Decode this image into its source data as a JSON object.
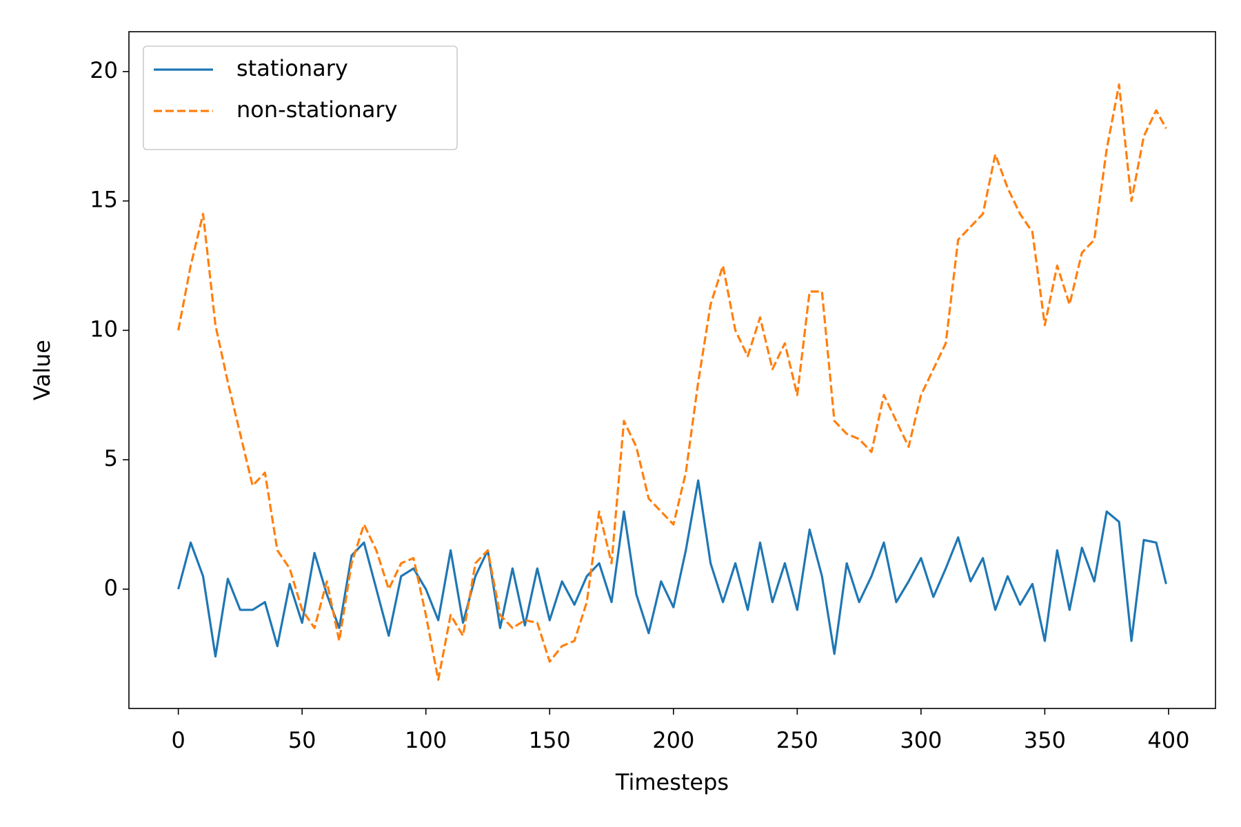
{
  "chart_data": {
    "type": "line",
    "xlabel": "Timesteps",
    "ylabel": "Value",
    "x": [
      0,
      5,
      10,
      15,
      20,
      25,
      30,
      35,
      40,
      45,
      50,
      55,
      60,
      65,
      70,
      75,
      80,
      85,
      90,
      95,
      100,
      105,
      110,
      115,
      120,
      125,
      130,
      135,
      140,
      145,
      150,
      155,
      160,
      165,
      170,
      175,
      180,
      185,
      190,
      195,
      200,
      205,
      210,
      215,
      220,
      225,
      230,
      235,
      240,
      245,
      250,
      255,
      260,
      265,
      270,
      275,
      280,
      285,
      290,
      295,
      300,
      305,
      310,
      315,
      320,
      325,
      330,
      335,
      340,
      345,
      350,
      355,
      360,
      365,
      370,
      375,
      380,
      385,
      390,
      395,
      399
    ],
    "series": [
      {
        "name": "stationary",
        "color": "#1f77b4",
        "linestyle": "solid",
        "values": [
          0,
          1.8,
          0.5,
          -2.6,
          0.4,
          -0.8,
          -0.8,
          -0.5,
          -2.2,
          0.2,
          -1.3,
          1.4,
          -0.2,
          -1.5,
          1.3,
          1.8,
          0,
          -1.8,
          0.5,
          0.8,
          0,
          -1.2,
          1.5,
          -1.3,
          0.5,
          1.5,
          -1.5,
          0.8,
          -1.4,
          0.8,
          -1.2,
          0.3,
          -0.6,
          0.5,
          1.0,
          -0.5,
          3.0,
          -0.2,
          -1.7,
          0.3,
          -0.7,
          1.5,
          4.2,
          1.0,
          -0.5,
          1.0,
          -0.8,
          1.8,
          -0.5,
          1.0,
          -0.8,
          2.3,
          0.5,
          -2.5,
          1.0,
          -0.5,
          0.5,
          1.8,
          -0.5,
          0.3,
          1.2,
          -0.3,
          0.8,
          2.0,
          0.3,
          1.2,
          -0.8,
          0.5,
          -0.6,
          0.2,
          -2.0,
          1.5,
          -0.8,
          1.6,
          0.3,
          3.0,
          2.6,
          -2.0,
          1.9,
          1.8,
          0.2
        ]
      },
      {
        "name": "non-stationary",
        "color": "#ff7f0e",
        "linestyle": "dashed",
        "values": [
          10.0,
          12.5,
          14.5,
          10.2,
          8.0,
          6.0,
          4.0,
          4.5,
          1.5,
          0.8,
          -0.8,
          -1.5,
          0.3,
          -2.0,
          1.0,
          2.5,
          1.5,
          0.0,
          1.0,
          1.2,
          -1.0,
          -3.5,
          -1.0,
          -1.8,
          1.0,
          1.5,
          -1.0,
          -1.5,
          -1.2,
          -1.3,
          -2.8,
          -2.2,
          -2.0,
          -0.5,
          3.0,
          1.0,
          6.5,
          5.5,
          3.5,
          3.0,
          2.5,
          4.5,
          8.0,
          11.0,
          12.5,
          10.0,
          9.0,
          10.5,
          8.5,
          9.5,
          7.5,
          11.5,
          11.5,
          6.5,
          6.0,
          5.8,
          5.3,
          7.5,
          6.5,
          5.5,
          7.5,
          8.5,
          9.5,
          13.5,
          14.0,
          14.5,
          16.8,
          15.5,
          14.5,
          13.8,
          10.2,
          12.5,
          11.0,
          13.0,
          13.5,
          17.0,
          19.5,
          15.0,
          17.5,
          18.5,
          17.8
        ]
      }
    ],
    "xlim": [
      -19.95,
      418.95
    ],
    "xticks": [
      0,
      50,
      100,
      150,
      200,
      250,
      300,
      350,
      400
    ],
    "ylim": [
      -4.61,
      21.54
    ],
    "yticks": [
      0,
      5,
      10,
      15,
      20
    ],
    "legend": "upper left"
  }
}
